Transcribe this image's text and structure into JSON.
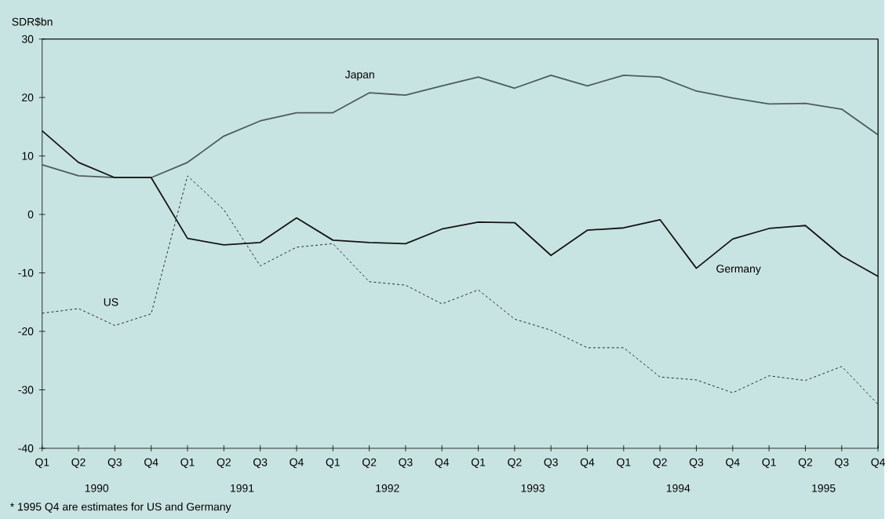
{
  "chart_data": {
    "type": "line",
    "ylabel": "SDR$bn",
    "categories": [
      "Q1",
      "Q2",
      "Q3",
      "Q4",
      "Q1",
      "Q2",
      "Q3",
      "Q4",
      "Q1",
      "Q2",
      "Q3",
      "Q4",
      "Q1",
      "Q2",
      "Q3",
      "Q4",
      "Q1",
      "Q2",
      "Q3",
      "Q4",
      "Q1",
      "Q2",
      "Q3",
      "Q4"
    ],
    "series": [
      {
        "name": "Japan",
        "color": "#4d5c5c",
        "line_style": "solid",
        "values": [
          8.5,
          6.6,
          6.3,
          6.3,
          8.9,
          13.4,
          16.0,
          17.4,
          17.4,
          20.8,
          20.4,
          22.0,
          23.5,
          21.6,
          23.8,
          22.0,
          23.8,
          23.5,
          21.1,
          19.9,
          18.9,
          19.0,
          18.0,
          13.6
        ]
      },
      {
        "name": "Germany",
        "color": "#141414",
        "line_style": "solid",
        "values": [
          14.3,
          8.9,
          6.3,
          6.3,
          -4.1,
          -5.2,
          -4.8,
          -0.6,
          -4.4,
          -4.8,
          -5.0,
          -2.5,
          -1.3,
          -1.4,
          -7.0,
          -2.7,
          -2.3,
          -0.9,
          -9.2,
          -4.2,
          -2.4,
          -1.9,
          -7.1,
          -10.6
        ]
      },
      {
        "name": "US",
        "color": "#141414",
        "line_style": "dashed",
        "values": [
          -16.9,
          -16.1,
          -19.0,
          -17.0,
          6.6,
          0.8,
          -8.8,
          -5.6,
          -5.0,
          -11.5,
          -12.1,
          -15.3,
          -12.9,
          -17.9,
          -19.8,
          -22.8,
          -22.8,
          -27.8,
          -28.3,
          -30.5,
          -27.6,
          -28.4,
          -26.0,
          -32.5
        ]
      }
    ],
    "ylim": [
      -40,
      30
    ],
    "yticks": [
      -40,
      -30,
      -20,
      -10,
      0,
      10,
      20,
      30
    ],
    "grid": false,
    "annotations": [
      "1990",
      "1991",
      "1992",
      "1993",
      "1994",
      "1995",
      "* 1995 Q4 are estimates for US and Germany"
    ]
  }
}
